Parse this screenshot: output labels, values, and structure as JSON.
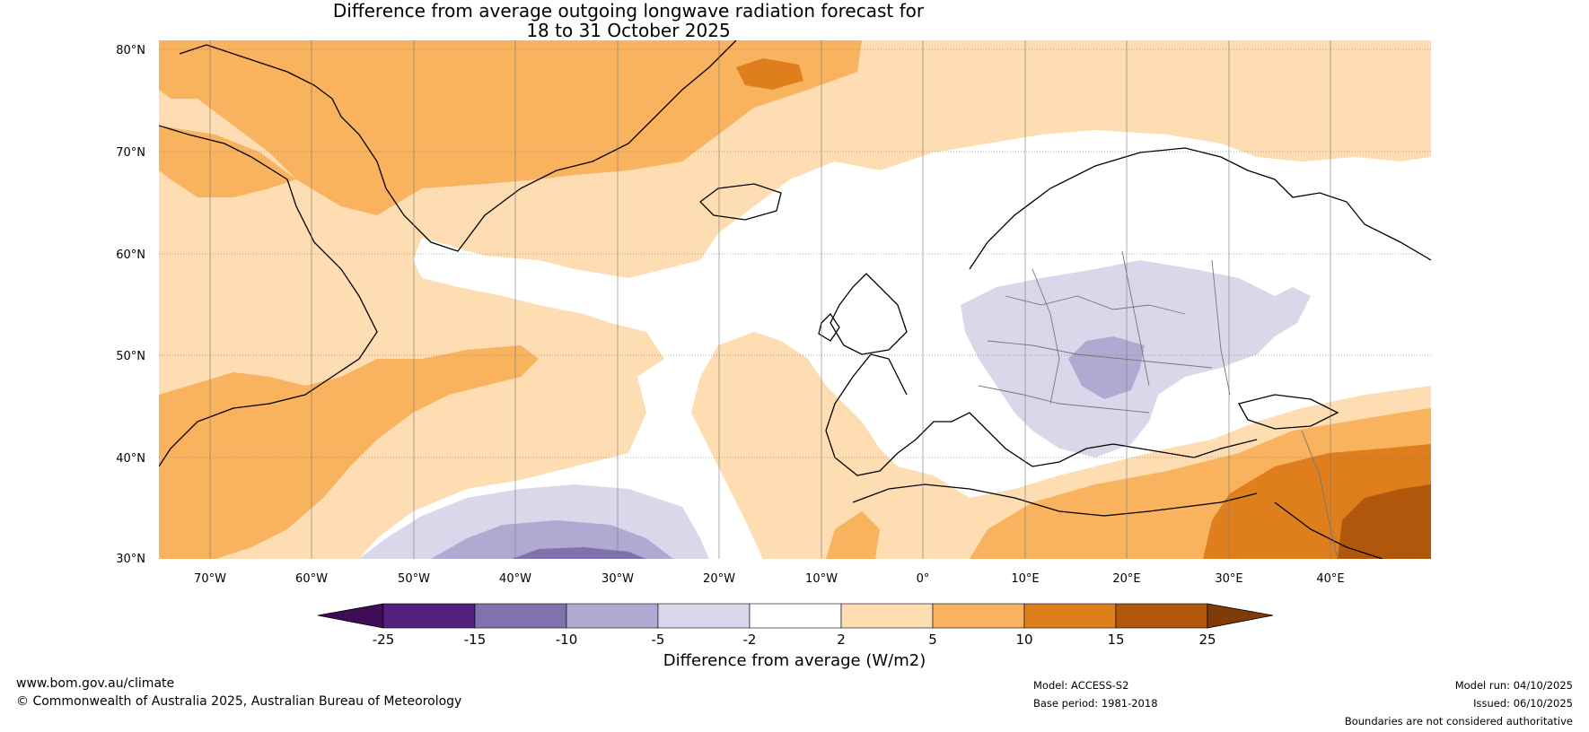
{
  "title": {
    "line1": "Difference from average outgoing longwave radiation forecast for",
    "line2": "18 to 31 October 2025"
  },
  "map": {
    "lat_labels": [
      "80°N",
      "70°N",
      "60°N",
      "50°N",
      "40°N",
      "30°N"
    ],
    "lon_labels": [
      "70°W",
      "60°W",
      "50°W",
      "40°W",
      "30°W",
      "20°W",
      "10°W",
      "0°",
      "10°E",
      "20°E",
      "30°E",
      "40°E"
    ],
    "lat_range": [
      30,
      81
    ],
    "lon_range": [
      -75,
      50
    ]
  },
  "colorbar": {
    "label": "Difference from average (W/m2)",
    "ticks": [
      "-25",
      "-15",
      "-10",
      "-5",
      "-2",
      "2",
      "5",
      "10",
      "15",
      "25"
    ],
    "colors": [
      "#3f0d57",
      "#542082",
      "#7f72ad",
      "#b0aad2",
      "#d9d8ea",
      "#ffffff",
      "#fdddb1",
      "#f9b25e",
      "#df7e1c",
      "#b1570b",
      "#7f3b08"
    ]
  },
  "footer": {
    "url": "www.bom.gov.au/climate",
    "copyright": "© Commonwealth of Australia 2025, Australian Bureau of Meteorology",
    "model": "Model: ACCESS-S2",
    "base_period": "Base period: 1981-2018",
    "model_run": "Model run: 04/10/2025",
    "issued": "Issued: 06/10/2025",
    "disclaimer": "Boundaries are not considered authoritative"
  }
}
